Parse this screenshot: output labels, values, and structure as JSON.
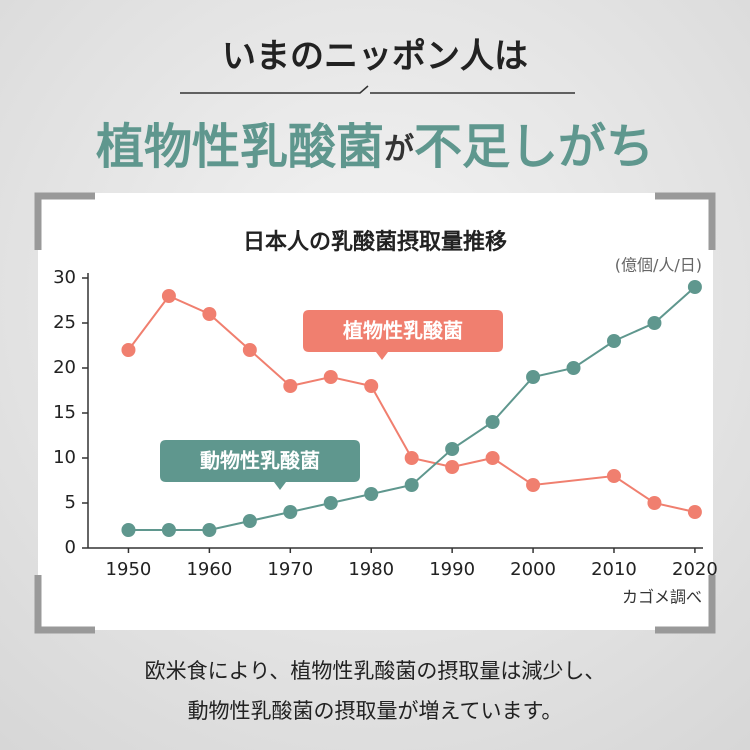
{
  "header": {
    "subtitle": "いまのニッポン人は",
    "title_parts": [
      "植物性乳酸菌",
      "が",
      "不足しがち"
    ]
  },
  "chart_data": {
    "type": "line",
    "title": "日本人の乳酸菌摂取量推移",
    "y_unit": "(億個/人/日)",
    "source": "カゴメ調べ",
    "xlim": [
      1945,
      2021
    ],
    "xticks": [
      1950,
      1960,
      1970,
      1980,
      1990,
      2000,
      2010,
      2020
    ],
    "ylim": [
      0,
      30
    ],
    "yticks": [
      0,
      5,
      10,
      15,
      20,
      25,
      30
    ],
    "series": [
      {
        "name": "植物性乳酸菌",
        "color": "#f07f6f",
        "x": [
          1950,
          1955,
          1960,
          1965,
          1970,
          1975,
          1980,
          1985,
          1990,
          1995,
          2000,
          2010,
          2015,
          2020
        ],
        "values": [
          22,
          28,
          26,
          22,
          18,
          19,
          18,
          10,
          9,
          10,
          7,
          8,
          5,
          4
        ]
      },
      {
        "name": "動物性乳酸菌",
        "color": "#5f978e",
        "x": [
          1950,
          1955,
          1960,
          1965,
          1970,
          1975,
          1980,
          1985,
          1990,
          1995,
          2000,
          2005,
          2010,
          2015,
          2020
        ],
        "values": [
          2,
          2,
          2,
          3,
          4,
          5,
          6,
          7,
          11,
          14,
          19,
          20,
          23,
          25,
          29
        ]
      }
    ]
  },
  "caption": [
    "欧米食により、植物性乳酸菌の摂取量は減少し、",
    "動物性乳酸菌の摂取量が増えています。"
  ]
}
